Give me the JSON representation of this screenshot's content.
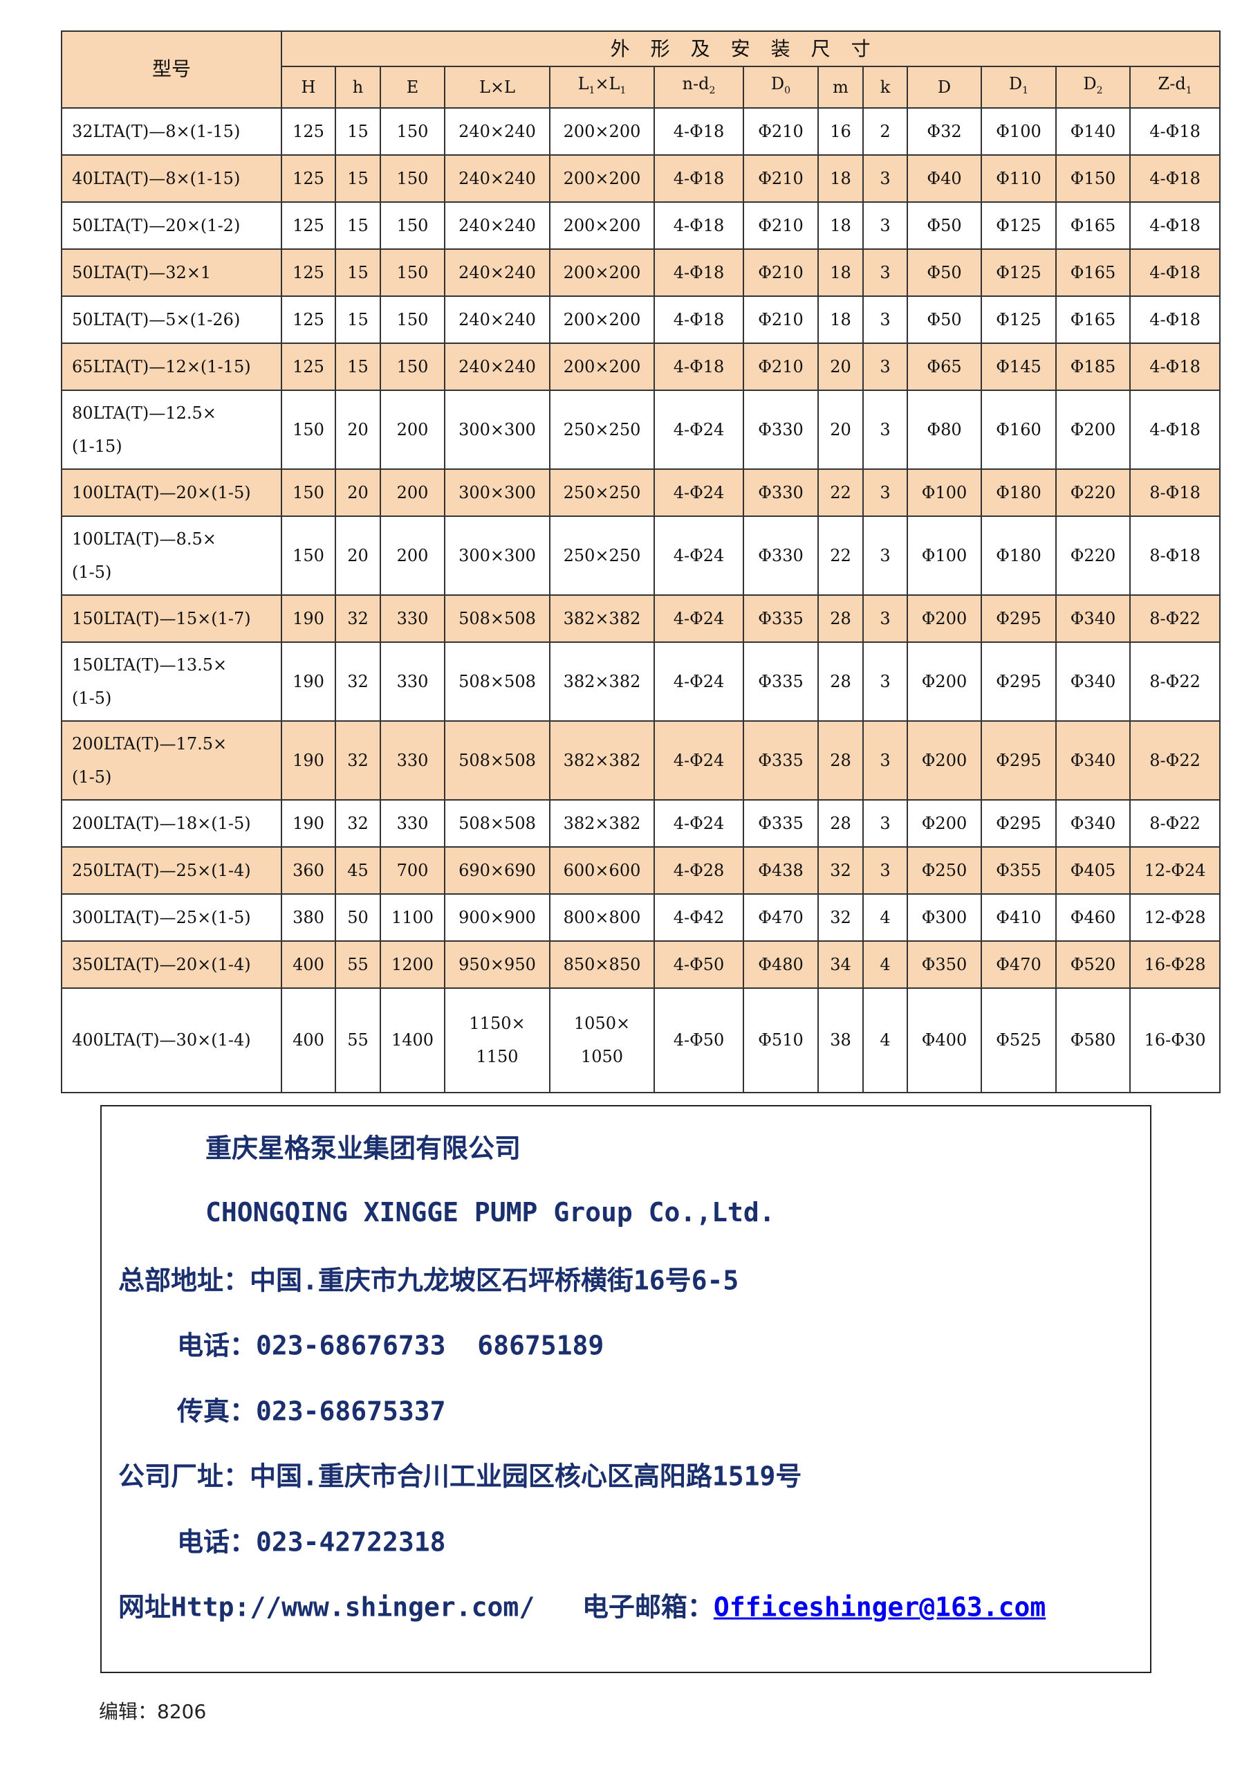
{
  "table": {
    "model_header": "型号",
    "group_header": "外形及安装尺寸",
    "columns": [
      {
        "base": "H",
        "sub": ""
      },
      {
        "base": "h",
        "sub": ""
      },
      {
        "base": "E",
        "sub": ""
      },
      {
        "base": "L×L",
        "sub": ""
      },
      {
        "base": "L",
        "sub": "1",
        "tail": "×L",
        "tailsub": "1"
      },
      {
        "base": "n-d",
        "sub": "2"
      },
      {
        "base": "D",
        "sub": "0"
      },
      {
        "base": "m",
        "sub": ""
      },
      {
        "base": "k",
        "sub": ""
      },
      {
        "base": "D",
        "sub": ""
      },
      {
        "base": "D",
        "sub": "1"
      },
      {
        "base": "D",
        "sub": "2"
      },
      {
        "base": "Z-d",
        "sub": "1"
      }
    ],
    "rows": [
      {
        "model": [
          "32LTA(T)—8×(1-15)"
        ],
        "values": [
          "125",
          "15",
          "150",
          "240×240",
          "200×200",
          "4-Φ18",
          "Φ210",
          "16",
          "2",
          "Φ32",
          "Φ100",
          "Φ140",
          "4-Φ18"
        ]
      },
      {
        "model": [
          "40LTA(T)—8×(1-15)"
        ],
        "values": [
          "125",
          "15",
          "150",
          "240×240",
          "200×200",
          "4-Φ18",
          "Φ210",
          "18",
          "3",
          "Φ40",
          "Φ110",
          "Φ150",
          "4-Φ18"
        ]
      },
      {
        "model": [
          "50LTA(T)—20×(1-2)"
        ],
        "values": [
          "125",
          "15",
          "150",
          "240×240",
          "200×200",
          "4-Φ18",
          "Φ210",
          "18",
          "3",
          "Φ50",
          "Φ125",
          "Φ165",
          "4-Φ18"
        ]
      },
      {
        "model": [
          "50LTA(T)—32×1"
        ],
        "values": [
          "125",
          "15",
          "150",
          "240×240",
          "200×200",
          "4-Φ18",
          "Φ210",
          "18",
          "3",
          "Φ50",
          "Φ125",
          "Φ165",
          "4-Φ18"
        ]
      },
      {
        "model": [
          "50LTA(T)—5×(1-26)"
        ],
        "values": [
          "125",
          "15",
          "150",
          "240×240",
          "200×200",
          "4-Φ18",
          "Φ210",
          "18",
          "3",
          "Φ50",
          "Φ125",
          "Φ165",
          "4-Φ18"
        ]
      },
      {
        "model": [
          "65LTA(T)—12×(1-15)"
        ],
        "values": [
          "125",
          "15",
          "150",
          "240×240",
          "200×200",
          "4-Φ18",
          "Φ210",
          "20",
          "3",
          "Φ65",
          "Φ145",
          "Φ185",
          "4-Φ18"
        ]
      },
      {
        "model": [
          "80LTA(T)—12.5×",
          "(1-15)"
        ],
        "values": [
          "150",
          "20",
          "200",
          "300×300",
          "250×250",
          "4-Φ24",
          "Φ330",
          "20",
          "3",
          "Φ80",
          "Φ160",
          "Φ200",
          "4-Φ18"
        ]
      },
      {
        "model": [
          "100LTA(T)—20×(1-5)"
        ],
        "values": [
          "150",
          "20",
          "200",
          "300×300",
          "250×250",
          "4-Φ24",
          "Φ330",
          "22",
          "3",
          "Φ100",
          "Φ180",
          "Φ220",
          "8-Φ18"
        ]
      },
      {
        "model": [
          "100LTA(T)—8.5×",
          "(1-5)"
        ],
        "values": [
          "150",
          "20",
          "200",
          "300×300",
          "250×250",
          "4-Φ24",
          "Φ330",
          "22",
          "3",
          "Φ100",
          "Φ180",
          "Φ220",
          "8-Φ18"
        ]
      },
      {
        "model": [
          "150LTA(T)—15×(1-7)"
        ],
        "values": [
          "190",
          "32",
          "330",
          "508×508",
          "382×382",
          "4-Φ24",
          "Φ335",
          "28",
          "3",
          "Φ200",
          "Φ295",
          "Φ340",
          "8-Φ22"
        ]
      },
      {
        "model": [
          "150LTA(T)—13.5×",
          "(1-5)"
        ],
        "values": [
          "190",
          "32",
          "330",
          "508×508",
          "382×382",
          "4-Φ24",
          "Φ335",
          "28",
          "3",
          "Φ200",
          "Φ295",
          "Φ340",
          "8-Φ22"
        ]
      },
      {
        "model": [
          "200LTA(T)—17.5×",
          "(1-5)"
        ],
        "values": [
          "190",
          "32",
          "330",
          "508×508",
          "382×382",
          "4-Φ24",
          "Φ335",
          "28",
          "3",
          "Φ200",
          "Φ295",
          "Φ340",
          "8-Φ22"
        ]
      },
      {
        "model": [
          "200LTA(T)—18×(1-5)"
        ],
        "values": [
          "190",
          "32",
          "330",
          "508×508",
          "382×382",
          "4-Φ24",
          "Φ335",
          "28",
          "3",
          "Φ200",
          "Φ295",
          "Φ340",
          "8-Φ22"
        ]
      },
      {
        "model": [
          "250LTA(T)—25×(1-4)"
        ],
        "values": [
          "360",
          "45",
          "700",
          "690×690",
          "600×600",
          "4-Φ28",
          "Φ438",
          "32",
          "3",
          "Φ250",
          "Φ355",
          "Φ405",
          "12-Φ24"
        ]
      },
      {
        "model": [
          "300LTA(T)—25×(1-5)"
        ],
        "values": [
          "380",
          "50",
          "1100",
          "900×900",
          "800×800",
          "4-Φ42",
          "Φ470",
          "32",
          "4",
          "Φ300",
          "Φ410",
          "Φ460",
          "12-Φ28"
        ]
      },
      {
        "model": [
          "350LTA(T)—20×(1-4)"
        ],
        "values": [
          "400",
          "55",
          "1200",
          "950×950",
          "850×850",
          "4-Φ50",
          "Φ480",
          "34",
          "4",
          "Φ350",
          "Φ470",
          "Φ520",
          "16-Φ28"
        ]
      },
      {
        "model": [
          "400LTA(T)—30×(1-4)"
        ],
        "values": [
          "400",
          "55",
          "1400",
          "1150×\n1150",
          "1050×\n1050",
          "4-Φ50",
          "Φ510",
          "38",
          "4",
          "Φ400",
          "Φ525",
          "Φ580",
          "16-Φ30"
        ]
      }
    ],
    "row_fill": "#f9d6b4"
  },
  "contact": {
    "company_cn": "重庆星格泵业集团有限公司",
    "company_en": "CHONGQING XINGGE PUMP Group Co.,Ltd.",
    "hq_address": "总部地址：中国.重庆市九龙坡区石坪桥横街16号6-5",
    "hq_phone": "电话：023-68676733  68675189",
    "fax": "传真：023-68675337",
    "factory_address": "公司厂址：中国.重庆市合川工业园区核心区高阳路1519号",
    "factory_phone": "电话：023-42722318",
    "website": "网址Http://www.shinger.com/   电子邮箱：",
    "email": "Officeshinger@163.com",
    "text_color": "#1a2f6e"
  },
  "footer": {
    "editor": "编辑：8206"
  }
}
